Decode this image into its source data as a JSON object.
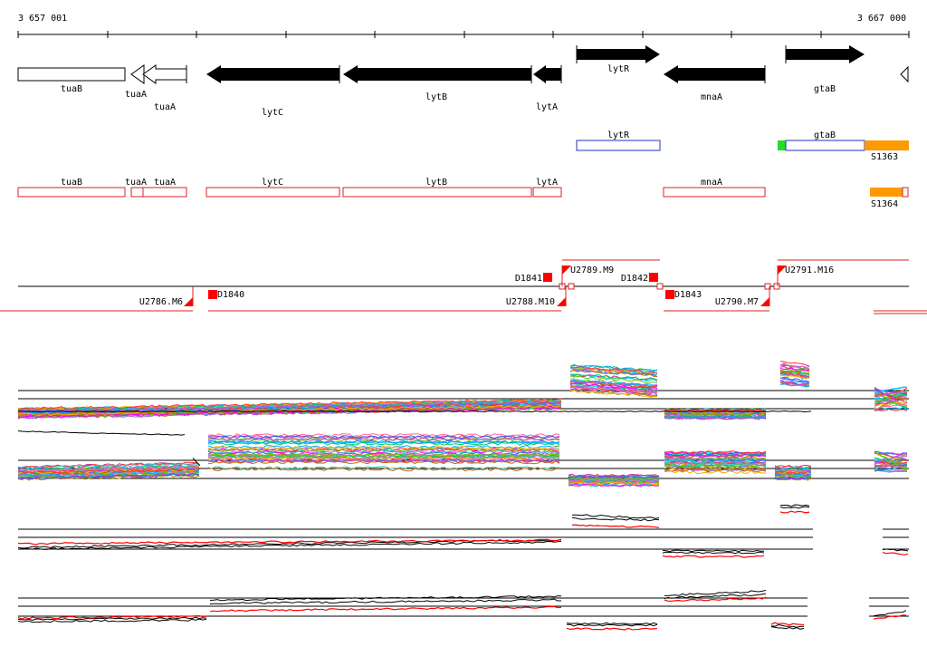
{
  "ruler": {
    "start_label": "3 657 001",
    "end_label": "3 667 000"
  },
  "colors": {
    "gene_fill": "#000000",
    "annotation_outline": "#dd2222",
    "transcript_outline": "#2233bb",
    "promoter": "#ff0000",
    "orange_feature": "#ff9900",
    "green_feature": "#22dd22"
  },
  "genes_strand": [
    {
      "label": "tuaB",
      "style": "outline",
      "dir": "none"
    },
    {
      "label": "tuaA",
      "style": "outline",
      "dir": "left"
    },
    {
      "label": "tuaA",
      "style": "outline",
      "dir": "left"
    },
    {
      "label": "lytC",
      "style": "filled",
      "dir": "left"
    },
    {
      "label": "lytB",
      "style": "filled",
      "dir": "left"
    },
    {
      "label": "lytA",
      "style": "filled",
      "dir": "left"
    },
    {
      "label": "lytR",
      "style": "filled",
      "dir": "right"
    },
    {
      "label": "mnaA",
      "style": "filled",
      "dir": "left"
    },
    {
      "label": "gtaB",
      "style": "filled",
      "dir": "right"
    }
  ],
  "transcripts": [
    {
      "label": "lytR"
    },
    {
      "label": "gtaB"
    }
  ],
  "side_features": [
    {
      "label": "S1363"
    },
    {
      "label": "S1364"
    }
  ],
  "annotations": [
    {
      "label": "tuaB"
    },
    {
      "label": "tuaA"
    },
    {
      "label": "tuaA"
    },
    {
      "label": "lytC"
    },
    {
      "label": "lytB"
    },
    {
      "label": "lytA"
    },
    {
      "label": "mnaA"
    }
  ],
  "features_upper": [
    {
      "label": "D1841"
    },
    {
      "label": "U2789.M9"
    },
    {
      "label": "D1842"
    },
    {
      "label": "U2791.M16"
    }
  ],
  "features_lower": [
    {
      "label": "U2786.M6"
    },
    {
      "label": "D1840"
    },
    {
      "label": "U2788.M10"
    },
    {
      "label": "D1843"
    },
    {
      "label": "U2790.M7"
    }
  ]
}
